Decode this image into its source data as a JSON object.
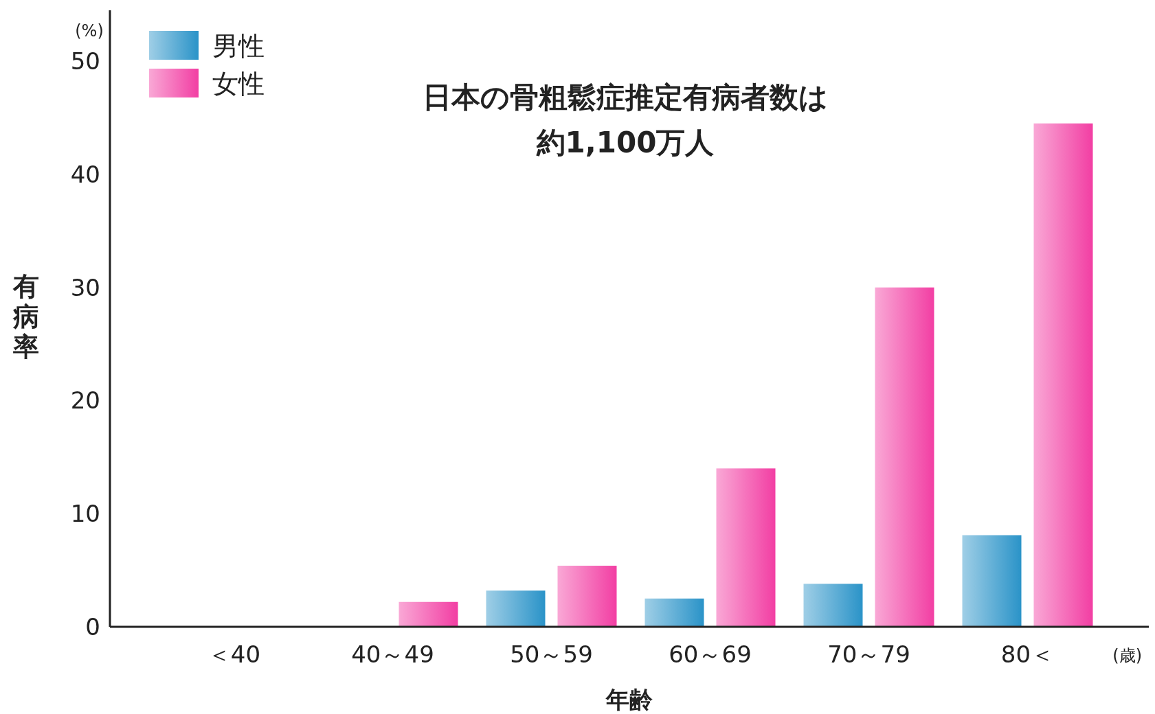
{
  "chart_data": {
    "type": "bar",
    "title": "日本の骨粗鬆症推定有病者数は",
    "subtitle": "約1,100万人",
    "xlabel": "年齢",
    "ylabel": "有病率",
    "annotations": [
      "(%)",
      "(歳)"
    ],
    "categories": [
      "＜40",
      "40～49",
      "50～59",
      "60～69",
      "70～79",
      "80＜"
    ],
    "series": [
      {
        "name": "男性",
        "color": "#2a93c8",
        "values": [
          0,
          0,
          3.2,
          2.5,
          3.8,
          8.1
        ]
      },
      {
        "name": "女性",
        "color": "#f23ea3",
        "values": [
          0,
          2.2,
          5.4,
          14.0,
          30.0,
          44.5
        ]
      }
    ],
    "ylim": [
      0,
      54.5
    ],
    "yticks": [
      0,
      10,
      20,
      30,
      40,
      50
    ],
    "legend": "top left"
  }
}
